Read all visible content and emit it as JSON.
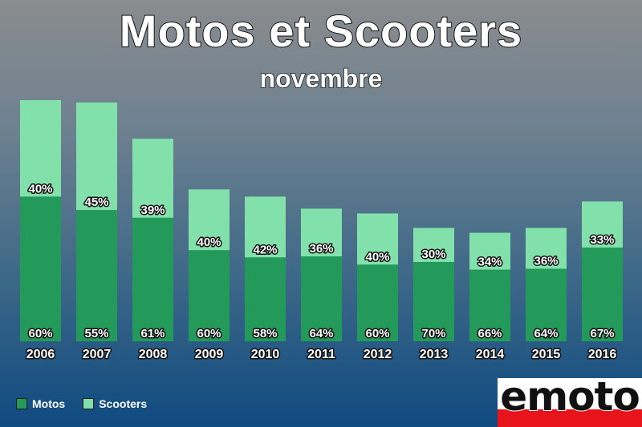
{
  "chart_data": {
    "type": "bar",
    "stacked": true,
    "title": "Motos et Scooters",
    "subtitle": "novembre",
    "categories": [
      "2006",
      "2007",
      "2008",
      "2009",
      "2010",
      "2011",
      "2012",
      "2013",
      "2014",
      "2015",
      "2016"
    ],
    "series": [
      {
        "name": "Motos",
        "color": "#249a5a",
        "values": [
          60,
          55,
          61,
          60,
          58,
          64,
          60,
          70,
          66,
          64,
          67
        ],
        "labels": [
          "60%",
          "55%",
          "61%",
          "60%",
          "58%",
          "64%",
          "60%",
          "70%",
          "66%",
          "64%",
          "67%"
        ]
      },
      {
        "name": "Scooters",
        "color": "#82e0ab",
        "values": [
          40,
          45,
          39,
          40,
          42,
          36,
          40,
          30,
          34,
          36,
          33
        ],
        "labels": [
          "40%",
          "45%",
          "39%",
          "40%",
          "42%",
          "36%",
          "40%",
          "30%",
          "34%",
          "36%",
          "33%"
        ]
      }
    ],
    "totals_relative": [
      1.0,
      0.99,
      0.84,
      0.63,
      0.6,
      0.55,
      0.53,
      0.47,
      0.45,
      0.47,
      0.58
    ],
    "legend_position": "bottom-left",
    "grid": false
  },
  "legend": {
    "motos": "Motos",
    "scooters": "Scooters"
  },
  "logo": {
    "text": "emoto"
  }
}
